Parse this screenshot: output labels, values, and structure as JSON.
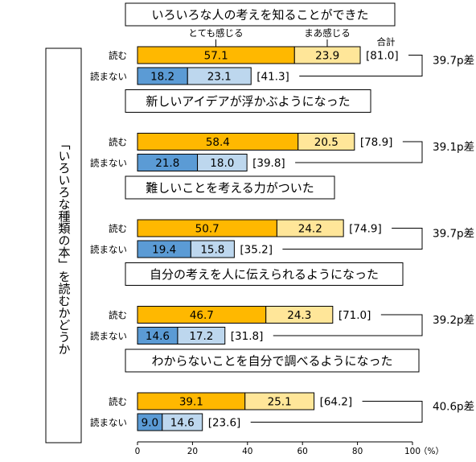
{
  "side_label": "「いろいろな種類の本」を読むかどうか",
  "legend": {
    "strong": "とても感じる",
    "mild": "まあ感じる",
    "total": "合計"
  },
  "row_labels": {
    "read": "読む",
    "not_read": "読まない"
  },
  "colors": {
    "read_strong": "#FFB800",
    "read_mild": "#FFE699",
    "not_strong": "#5B9BD5",
    "not_mild": "#BDD7EE",
    "border": "#000000"
  },
  "chart_data": {
    "type": "bar",
    "orientation": "horizontal",
    "stacked": true,
    "xlim": [
      0,
      100
    ],
    "x_ticks": [
      "0",
      "20",
      "40",
      "60",
      "80",
      "100"
    ],
    "x_unit": "（%）",
    "grid": false,
    "groups": [
      {
        "title": "いろいろな人の考えを知ることができた",
        "read": {
          "strong": 57.1,
          "mild": 23.9,
          "total": "[81.0]"
        },
        "not_read": {
          "strong": 18.2,
          "mild": 23.1,
          "total": "[41.3]"
        },
        "diff": "39.7p差"
      },
      {
        "title": "新しいアイデアが浮かぶようになった",
        "read": {
          "strong": 58.4,
          "mild": 20.5,
          "total": "[78.9]"
        },
        "not_read": {
          "strong": 21.8,
          "mild": 18.0,
          "total": "[39.8]"
        },
        "diff": "39.1p差"
      },
      {
        "title": "難しいことを考える力がついた",
        "read": {
          "strong": 50.7,
          "mild": 24.2,
          "total": "[74.9]"
        },
        "not_read": {
          "strong": 19.4,
          "mild": 15.8,
          "total": "[35.2]"
        },
        "diff": "39.7p差"
      },
      {
        "title": "自分の考えを人に伝えられるようになった",
        "read": {
          "strong": 46.7,
          "mild": 24.3,
          "total": "[71.0]"
        },
        "not_read": {
          "strong": 14.6,
          "mild": 17.2,
          "total": "[31.8]"
        },
        "diff": "39.2p差"
      },
      {
        "title": "わからないことを自分で調べるようになった",
        "read": {
          "strong": 39.1,
          "mild": 25.1,
          "total": "[64.2]"
        },
        "not_read": {
          "strong": 9.0,
          "mild": 14.6,
          "total": "[23.6]"
        },
        "diff": "40.6p差"
      }
    ]
  }
}
